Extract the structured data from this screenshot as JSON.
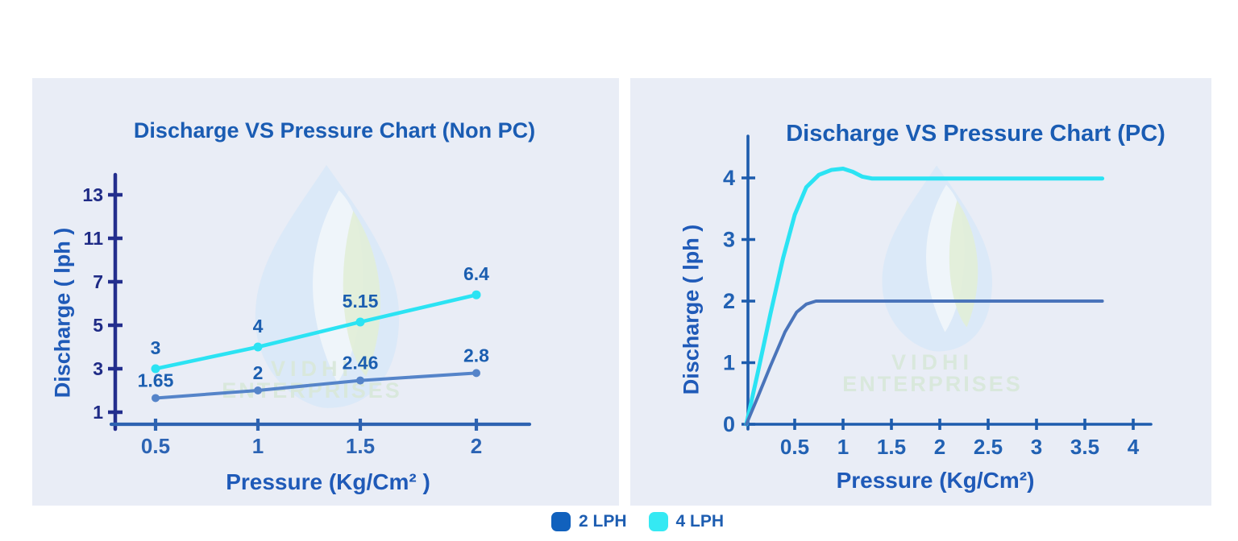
{
  "watermark": {
    "line1": "VIDHI",
    "line2": "ENTERPRISES"
  },
  "legend": {
    "items": [
      {
        "label": "2 LPH",
        "color": "#1161bd"
      },
      {
        "label": "4 LPH",
        "color": "#35e9f3"
      }
    ]
  },
  "colors": {
    "page_bg": "#ffffff",
    "panel_bg": "#e9edf6",
    "title": "#1a5cb3",
    "axis_title": "#1f5ab8",
    "data_label": "#1b5eb0",
    "legend_text": "#1d5db1",
    "left_y_axis": "#232e8d",
    "left_x_axis": "#2e63b1",
    "left_y_tick_label": "#1f2b86",
    "left_x_tick_label": "#2c64b4",
    "right_axis": "#1d5cad",
    "right_tick_label": "#2161b3",
    "watermark_text": "#d9e8db",
    "watermark_drop": "#d8e8f8",
    "watermark_leaf": "#e2eed9",
    "watermark_gap": "#f0f5fa"
  },
  "chart_data": [
    {
      "type": "line",
      "title": "Discharge VS Pressure Chart (Non PC)",
      "xlabel": "Pressure (Kg/Cm² )",
      "ylabel": "Discharge ( lph )",
      "x_tick_labels": [
        "0.5",
        "1",
        "1.5",
        "2"
      ],
      "x_tick_values": [
        0.5,
        1,
        1.5,
        2
      ],
      "y_tick_labels": [
        "1",
        "3",
        "5",
        "7",
        "11",
        "13"
      ],
      "y_tick_values": [
        1,
        3,
        5,
        7,
        11,
        13
      ],
      "grid": false,
      "legend_position": "bottom-shared",
      "series": [
        {
          "name": "4 LPH",
          "color": "#2be3f3",
          "x": [
            0.5,
            1,
            1.5,
            2
          ],
          "values": [
            3,
            4,
            5.15,
            6.4
          ],
          "point_labels": [
            "3",
            "4",
            "5.15",
            "6.4"
          ]
        },
        {
          "name": "2 LPH",
          "color": "#5584c9",
          "x": [
            0.5,
            1,
            1.5,
            2
          ],
          "values": [
            1.65,
            2,
            2.46,
            2.8
          ],
          "point_labels": [
            "1.65",
            "2",
            "2.46",
            "2.8"
          ]
        }
      ]
    },
    {
      "type": "line",
      "title": "Discharge VS Pressure Chart (PC)",
      "xlabel": "Pressure (Kg/Cm²)",
      "ylabel": "Discharge ( lph )",
      "x_tick_labels": [
        "0.5",
        "1",
        "1.5",
        "2",
        "2.5",
        "3",
        "3.5",
        "4"
      ],
      "x_tick_values": [
        0.5,
        1,
        1.5,
        2,
        2.5,
        3,
        3.5,
        4
      ],
      "y_tick_labels": [
        "0",
        "1",
        "2",
        "3",
        "4"
      ],
      "y_tick_values": [
        0,
        1,
        2,
        3,
        4
      ],
      "xlim": [
        0,
        4.2
      ],
      "ylim": [
        0,
        4.7
      ],
      "grid": false,
      "legend_position": "bottom-shared",
      "series": [
        {
          "name": "4 LPH",
          "color": "#2be3f3",
          "points": [
            [
              0,
              0
            ],
            [
              0.12,
              0.85
            ],
            [
              0.25,
              1.8
            ],
            [
              0.38,
              2.7
            ],
            [
              0.5,
              3.4
            ],
            [
              0.62,
              3.85
            ],
            [
              0.75,
              4.05
            ],
            [
              0.88,
              4.13
            ],
            [
              1.0,
              4.15
            ],
            [
              1.1,
              4.1
            ],
            [
              1.2,
              4.02
            ],
            [
              1.3,
              3.99
            ],
            [
              3.68,
              3.99
            ]
          ]
        },
        {
          "name": "2 LPH",
          "color": "#4a74ba",
          "points": [
            [
              0,
              0
            ],
            [
              0.12,
              0.45
            ],
            [
              0.25,
              0.95
            ],
            [
              0.4,
              1.5
            ],
            [
              0.52,
              1.82
            ],
            [
              0.62,
              1.95
            ],
            [
              0.72,
              2.0
            ],
            [
              3.68,
              2.0
            ]
          ]
        }
      ]
    }
  ]
}
